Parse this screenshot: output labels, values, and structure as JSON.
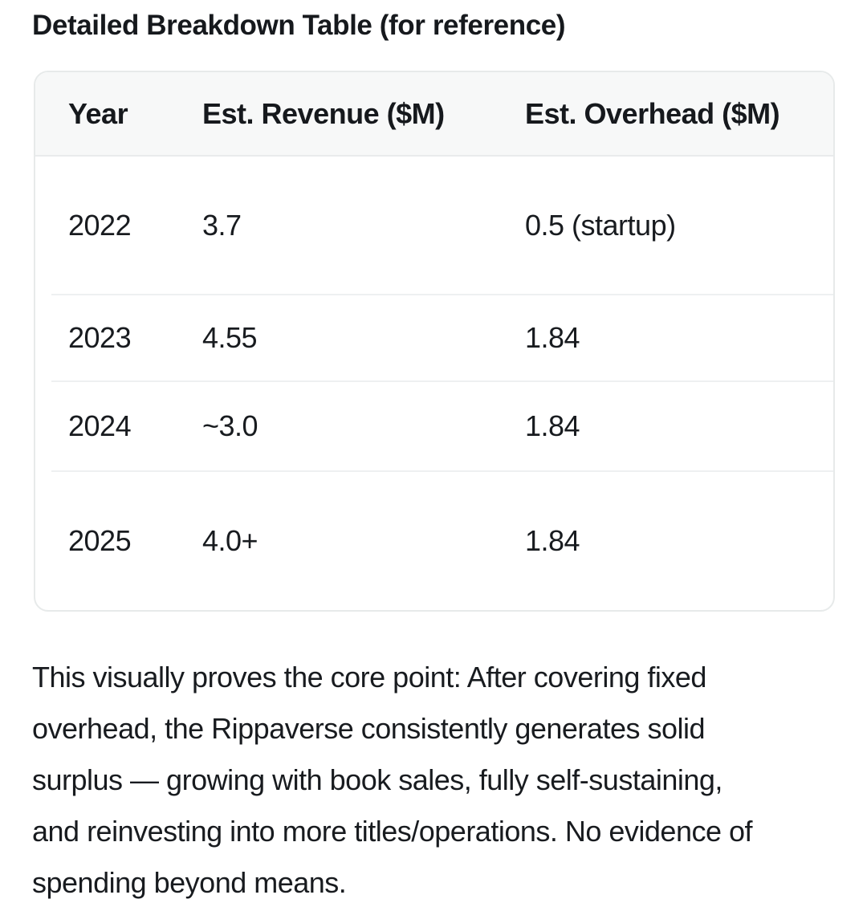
{
  "page": {
    "title": "Detailed Breakdown Table (for reference)"
  },
  "table": {
    "columns": [
      "Year",
      "Est. Revenue ($M)",
      "Est. Overhead ($M)"
    ],
    "rows": [
      [
        "2022",
        "3.7",
        "0.5 (startup)"
      ],
      [
        "2023",
        "4.55",
        "1.84"
      ],
      [
        "2024",
        "~3.0",
        "1.84"
      ],
      [
        "2025",
        "4.0+",
        "1.84"
      ]
    ]
  },
  "paragraph": {
    "lines": [
      "This visually proves the core point: After covering fixed",
      "overhead, the Rippaverse consistently generates solid",
      "surplus — growing with book sales, fully self-sustaining,",
      "and reinvesting into more titles/operations. No evidence of",
      "spending beyond means."
    ]
  },
  "colors": {
    "text": "#181b1f",
    "header_background": "#f7f8f8",
    "card_border": "#e7eaea",
    "row_divider": "#eef0f1",
    "page_background": "#ffffff"
  }
}
